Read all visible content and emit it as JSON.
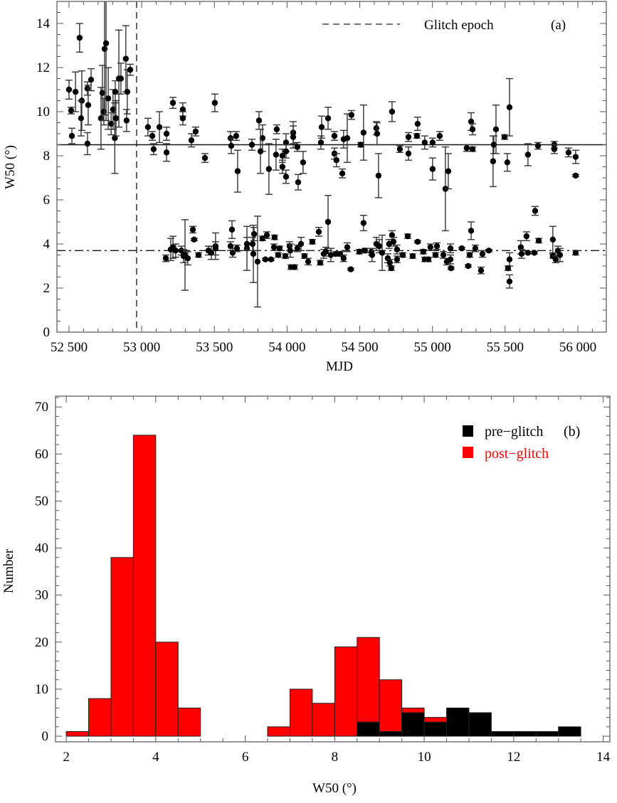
{
  "chart_data": [
    {
      "type": "scatter",
      "panel_label": "(a)",
      "xlabel": "MJD",
      "ylabel": "W50 (°)",
      "xlim": [
        52417,
        56196
      ],
      "ylim": [
        0,
        15
      ],
      "xticks": [
        52500,
        53000,
        53500,
        54000,
        54500,
        55000,
        55500,
        56000
      ],
      "xtick_labels": [
        "52 500",
        "53 000",
        "53 500",
        "54 000",
        "54 500",
        "55 000",
        "55 500",
        "56 000"
      ],
      "yticks": [
        0,
        2,
        4,
        6,
        8,
        10,
        12,
        14
      ],
      "ytick_labels": [
        "0",
        "2",
        "4",
        "6",
        "8",
        "10",
        "12",
        "14"
      ],
      "legend": {
        "label": "Glitch epoch",
        "placement": "top-right"
      },
      "glitch_epoch_mjd": 52965,
      "reference_lines": [
        {
          "y": 8.5,
          "style": "solid"
        },
        {
          "y": 3.7,
          "style": "dash-dot"
        }
      ],
      "points_columns": [
        "mjd",
        "w50",
        "error"
      ],
      "points": [
        [
          52500,
          11.0,
          0.43
        ],
        [
          52515,
          10.05,
          0.15
        ],
        [
          52520,
          8.9,
          0.35
        ],
        [
          52545,
          10.9,
          0.9
        ],
        [
          52573,
          13.35,
          0.65
        ],
        [
          52588,
          10.5,
          1.35
        ],
        [
          52583,
          9.7,
          0.8
        ],
        [
          52627,
          11.05,
          0.3
        ],
        [
          52652,
          11.45,
          0.5
        ],
        [
          52632,
          10.3,
          0.9
        ],
        [
          52627,
          8.55,
          0.5
        ],
        [
          52720,
          9.7,
          1.4
        ],
        [
          52730,
          10.85,
          1.25
        ],
        [
          52740,
          10.0,
          0.6
        ],
        [
          52745,
          12.85,
          3.0
        ],
        [
          52755,
          13.1,
          3.5
        ],
        [
          52770,
          10.6,
          1.4
        ],
        [
          52790,
          9.45,
          0.5
        ],
        [
          52803,
          10.1,
          0.9
        ],
        [
          52818,
          10.9,
          0.5
        ],
        [
          52815,
          8.8,
          1.6
        ],
        [
          52823,
          9.7,
          0.8
        ],
        [
          52843,
          11.5,
          2.2
        ],
        [
          52857,
          11.5,
          0.7
        ],
        [
          52891,
          12.4,
          1.5
        ],
        [
          52901,
          10.9,
          1.0
        ],
        [
          52896,
          9.6,
          0.5
        ],
        [
          52921,
          11.9,
          0.25
        ],
        [
          53043,
          9.3,
          0.4
        ],
        [
          53073,
          8.9,
          0.2
        ],
        [
          53082,
          8.3,
          0.25
        ],
        [
          53122,
          9.3,
          0.7
        ],
        [
          53171,
          9.0,
          0.3
        ],
        [
          53171,
          8.15,
          0.4
        ],
        [
          53215,
          10.4,
          0.25
        ],
        [
          53283,
          10.1,
          0.3
        ],
        [
          53283,
          9.7,
          0.3
        ],
        [
          53342,
          8.7,
          0.3
        ],
        [
          53371,
          9.1,
          0.2
        ],
        [
          53435,
          7.9,
          0.2
        ],
        [
          53503,
          10.4,
          0.4
        ],
        [
          53611,
          8.8,
          0.3
        ],
        [
          53616,
          8.45,
          0.35
        ],
        [
          53650,
          8.9,
          0.2
        ],
        [
          53660,
          7.3,
          0.95
        ],
        [
          53758,
          8.5,
          0.25
        ],
        [
          53807,
          9.6,
          0.4
        ],
        [
          53831,
          8.8,
          0.6
        ],
        [
          53817,
          8.2,
          1.0
        ],
        [
          53875,
          7.4,
          1.15
        ],
        [
          53929,
          9.2,
          0.2
        ],
        [
          53924,
          8.05,
          0.7
        ],
        [
          53968,
          8.0,
          0.3
        ],
        [
          53968,
          7.5,
          0.3
        ],
        [
          53993,
          8.6,
          0.4
        ],
        [
          53993,
          8.2,
          0.3
        ],
        [
          53993,
          7.05,
          0.3
        ],
        [
          54042,
          9.05,
          0.5
        ],
        [
          54042,
          8.85,
          0.5
        ],
        [
          54071,
          8.4,
          0.2
        ],
        [
          54076,
          6.8,
          0.35
        ],
        [
          54110,
          7.7,
          0.5
        ],
        [
          54233,
          8.6,
          0.3
        ],
        [
          54238,
          9.3,
          0.5
        ],
        [
          54282,
          9.7,
          0.5
        ],
        [
          54326,
          8.9,
          0.2
        ],
        [
          54326,
          8.1,
          0.25
        ],
        [
          54340,
          7.8,
          0.3
        ],
        [
          54380,
          7.2,
          0.2
        ],
        [
          54389,
          8.75,
          0.4
        ],
        [
          54414,
          8.8,
          1.1
        ],
        [
          54443,
          9.85,
          0.2
        ],
        [
          54507,
          8.5,
          0.1
        ],
        [
          54526,
          9.05,
          1.25
        ],
        [
          54614,
          9.25,
          0.3
        ],
        [
          54619,
          9.0,
          0.5
        ],
        [
          54629,
          7.1,
          1.0
        ],
        [
          54722,
          10.0,
          0.45
        ],
        [
          54776,
          8.3,
          0.15
        ],
        [
          54835,
          8.85,
          0.2
        ],
        [
          54835,
          8.1,
          0.3
        ],
        [
          54898,
          9.45,
          0.3
        ],
        [
          54893,
          8.9,
          0.1
        ],
        [
          54947,
          8.6,
          0.3
        ],
        [
          55001,
          8.6,
          0.2
        ],
        [
          55001,
          7.4,
          0.5
        ],
        [
          55050,
          8.9,
          0.2
        ],
        [
          55089,
          6.5,
          1.9
        ],
        [
          55109,
          7.3,
          0.8
        ],
        [
          55236,
          8.35,
          0.15
        ],
        [
          55276,
          8.3,
          0.1
        ],
        [
          55266,
          9.55,
          0.4
        ],
        [
          55276,
          9.2,
          0.25
        ],
        [
          55417,
          7.75,
          1.15
        ],
        [
          55422,
          8.5,
          0.4
        ],
        [
          55437,
          9.2,
          1.1
        ],
        [
          55496,
          8.85,
          0.1
        ],
        [
          55515,
          7.7,
          0.4
        ],
        [
          55530,
          10.2,
          1.3
        ],
        [
          55657,
          8.05,
          0.5
        ],
        [
          55726,
          8.45,
          0.15
        ],
        [
          55838,
          8.5,
          0.15
        ],
        [
          55838,
          8.3,
          0.2
        ],
        [
          55936,
          8.15,
          0.2
        ],
        [
          55985,
          7.95,
          0.3
        ],
        [
          55985,
          7.1,
          0.05
        ],
        [
          53166,
          3.35,
          0.15
        ],
        [
          53200,
          3.75,
          0.5
        ],
        [
          53215,
          3.85,
          0.5
        ],
        [
          53234,
          3.7,
          0.3
        ],
        [
          53273,
          3.7,
          0.2
        ],
        [
          53288,
          3.45,
          0.3
        ],
        [
          53298,
          3.5,
          1.6
        ],
        [
          53317,
          3.35,
          0.3
        ],
        [
          53352,
          4.65,
          0.15
        ],
        [
          53361,
          4.2,
          0.05
        ],
        [
          53391,
          3.5,
          0.1
        ],
        [
          53459,
          3.7,
          0.2
        ],
        [
          53479,
          3.6,
          0.3
        ],
        [
          53508,
          3.9,
          0.6
        ],
        [
          53508,
          3.8,
          0.3
        ],
        [
          53611,
          3.9,
          0.2
        ],
        [
          53621,
          4.65,
          0.4
        ],
        [
          53626,
          3.6,
          0.2
        ],
        [
          53655,
          3.8,
          0.15
        ],
        [
          53724,
          3.8,
          1.0
        ],
        [
          53724,
          4.0,
          0.3
        ],
        [
          53768,
          3.55,
          1.3
        ],
        [
          53773,
          4.45,
          0.3
        ],
        [
          53797,
          3.2,
          2.06
        ],
        [
          53763,
          4.0,
          0.3
        ],
        [
          53831,
          4.25,
          0.1
        ],
        [
          53861,
          4.4,
          0.15
        ],
        [
          53851,
          3.3,
          0.05
        ],
        [
          53890,
          3.3,
          0.05
        ],
        [
          53914,
          4.3,
          0.1
        ],
        [
          53910,
          3.85,
          0.15
        ],
        [
          53939,
          3.5,
          0.1
        ],
        [
          53949,
          3.8,
          0.1
        ],
        [
          53988,
          3.45,
          0.1
        ],
        [
          54017,
          3.9,
          0.2
        ],
        [
          54022,
          3.7,
          0.3
        ],
        [
          54027,
          2.95,
          0.1
        ],
        [
          54051,
          2.95,
          0.1
        ],
        [
          54071,
          3.8,
          0.15
        ],
        [
          54096,
          4.0,
          0.3
        ],
        [
          54120,
          3.45,
          0.1
        ],
        [
          54145,
          3.2,
          0.15
        ],
        [
          54174,
          4.1,
          0.1
        ],
        [
          54218,
          4.55,
          0.2
        ],
        [
          54228,
          3.15,
          0.1
        ],
        [
          54252,
          3.55,
          0.2
        ],
        [
          54282,
          5.0,
          1.2
        ],
        [
          54267,
          3.65,
          0.2
        ],
        [
          54301,
          3.5,
          0.3
        ],
        [
          54336,
          3.55,
          0.1
        ],
        [
          54365,
          3.55,
          0.1
        ],
        [
          54389,
          3.35,
          0.15
        ],
        [
          54414,
          3.85,
          0.2
        ],
        [
          54438,
          2.85,
          0.05
        ],
        [
          54497,
          3.65,
          0.1
        ],
        [
          54526,
          4.95,
          0.35
        ],
        [
          54536,
          3.7,
          0.1
        ],
        [
          54580,
          3.65,
          0.15
        ],
        [
          54585,
          3.5,
          0.3
        ],
        [
          54614,
          4.0,
          0.3
        ],
        [
          54634,
          3.9,
          0.3
        ],
        [
          54654,
          3.6,
          0.8
        ],
        [
          54693,
          3.35,
          0.2
        ],
        [
          54702,
          4.0,
          0.2
        ],
        [
          54707,
          3.15,
          0.15
        ],
        [
          54717,
          2.9,
          0.1
        ],
        [
          54722,
          4.4,
          0.2
        ],
        [
          54732,
          4.1,
          0.2
        ],
        [
          54756,
          3.75,
          0.2
        ],
        [
          54756,
          3.3,
          0.15
        ],
        [
          54796,
          3.5,
          0.1
        ],
        [
          54830,
          4.35,
          0.1
        ],
        [
          54864,
          3.45,
          0.1
        ],
        [
          54898,
          4.1,
          0.05
        ],
        [
          54937,
          3.65,
          0.1
        ],
        [
          54947,
          3.3,
          0.1
        ],
        [
          54972,
          3.3,
          0.1
        ],
        [
          54986,
          3.85,
          0.15
        ],
        [
          55021,
          3.5,
          0.1
        ],
        [
          55031,
          3.9,
          0.15
        ],
        [
          55075,
          3.5,
          0.15
        ],
        [
          55099,
          3.2,
          0.15
        ],
        [
          55124,
          3.8,
          0.2
        ],
        [
          55124,
          3.3,
          0.2
        ],
        [
          55128,
          2.9,
          0.05
        ],
        [
          55202,
          3.8,
          0.05
        ],
        [
          55256,
          3.5,
          0.1
        ],
        [
          55246,
          3.0,
          0.05
        ],
        [
          55266,
          4.6,
          0.4
        ],
        [
          55295,
          3.8,
          0.15
        ],
        [
          55334,
          2.8,
          0.15
        ],
        [
          55344,
          3.55,
          0.15
        ],
        [
          55388,
          3.7,
          0.05
        ],
        [
          55530,
          3.3,
          0.3
        ],
        [
          55520,
          2.9,
          0.1
        ],
        [
          55530,
          2.3,
          0.3
        ],
        [
          55608,
          3.85,
          0.3
        ],
        [
          55613,
          3.55,
          0.2
        ],
        [
          55647,
          4.35,
          0.2
        ],
        [
          55657,
          3.6,
          0.05
        ],
        [
          55701,
          3.6,
          0.05
        ],
        [
          55706,
          5.5,
          0.2
        ],
        [
          55731,
          4.15,
          0.1
        ],
        [
          55828,
          4.2,
          0.6
        ],
        [
          55828,
          3.45,
          0.1
        ],
        [
          55848,
          3.3,
          0.15
        ],
        [
          55863,
          3.7,
          0.2
        ],
        [
          55877,
          3.5,
          0.3
        ],
        [
          55985,
          3.6,
          0.1
        ]
      ]
    },
    {
      "type": "bar",
      "stacked": true,
      "xlabel": "W50 (°)",
      "ylabel": "Number",
      "xlim": [
        1.76,
        14.15
      ],
      "ylim": [
        -1.2,
        72.3
      ],
      "xticks": [
        2,
        4,
        6,
        8,
        10,
        12,
        14
      ],
      "xtick_labels": [
        "2",
        "4",
        "6",
        "8",
        "10",
        "12",
        "14"
      ],
      "yticks": [
        0,
        10,
        20,
        30,
        40,
        50,
        60,
        70
      ],
      "ytick_labels": [
        "0",
        "10",
        "20",
        "30",
        "40",
        "50",
        "60",
        "70"
      ],
      "bin_width": 0.5,
      "bin_starts": [
        2,
        2.5,
        3,
        3.5,
        4,
        4.5,
        6.5,
        7,
        7.5,
        8,
        8.5,
        9,
        9.5,
        10,
        10.5,
        11,
        11.5,
        12,
        12.5,
        13
      ],
      "series": [
        {
          "name": "pre−glitch",
          "color": "#000000",
          "values": [
            0,
            0,
            0,
            0,
            0,
            0,
            0,
            0,
            0,
            0,
            3,
            1,
            5,
            3,
            6,
            5,
            1,
            1,
            1,
            2
          ]
        },
        {
          "name": "post−glitch",
          "color": "#ff0000",
          "values": [
            1,
            8,
            38,
            64,
            20,
            6,
            2,
            10,
            7,
            19,
            18,
            11,
            1,
            1,
            0,
            0,
            0,
            0,
            0,
            0
          ]
        }
      ],
      "panel_label": "(b)",
      "legend": {
        "placement": "top-right"
      }
    }
  ]
}
